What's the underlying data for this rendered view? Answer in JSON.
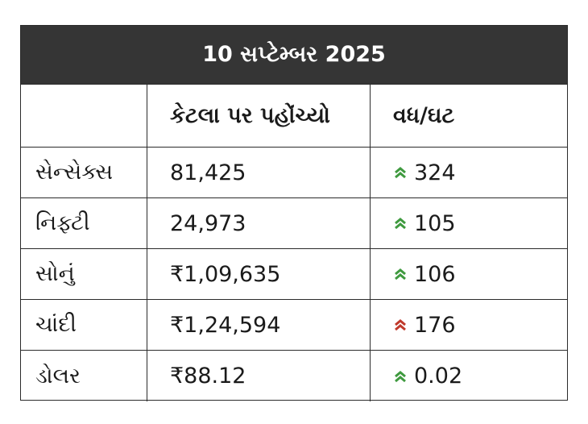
{
  "title": "10 સપ્ટેમ્બર 2025",
  "headers": [
    "",
    "કેટલા પર પહોંચ્યો",
    "વધ/ઘટ"
  ],
  "colors": {
    "up": "#3f9a3f",
    "up_red": "#c0392b",
    "header_bg": "#353535"
  },
  "rows": [
    {
      "name": "સેન્સેક્સ",
      "value": "81,425",
      "change": "324",
      "arrow": "up-green"
    },
    {
      "name": "નિફ્ટી",
      "value": "24,973",
      "change": "105",
      "arrow": "up-green"
    },
    {
      "name": "સોનું",
      "value": "₹1,09,635",
      "change": "106",
      "arrow": "up-green"
    },
    {
      "name": "ચાંદી",
      "value": "₹1,24,594",
      "change": "176",
      "arrow": "up-red"
    },
    {
      "name": "ડોલર",
      "value": "₹88.12",
      "change": "0.02",
      "arrow": "up-green"
    }
  ]
}
